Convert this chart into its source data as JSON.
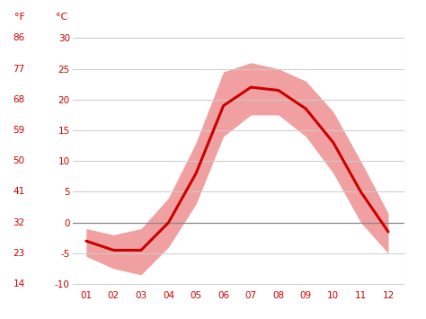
{
  "months": [
    1,
    2,
    3,
    4,
    5,
    6,
    7,
    8,
    9,
    10,
    11,
    12
  ],
  "month_labels": [
    "01",
    "02",
    "03",
    "04",
    "05",
    "06",
    "07",
    "08",
    "09",
    "10",
    "11",
    "12"
  ],
  "avg_temp": [
    -3,
    -4.5,
    -4.5,
    0,
    8,
    19,
    22,
    21.5,
    18.5,
    13,
    5,
    -1.5
  ],
  "max_temp": [
    -1,
    -2,
    -1,
    4,
    13,
    24.5,
    26,
    25,
    23,
    18,
    10,
    1.5
  ],
  "min_temp": [
    -5.5,
    -7.5,
    -8.5,
    -4,
    3,
    14,
    17.5,
    17.5,
    14,
    8,
    0,
    -5
  ],
  "line_color": "#cc0000",
  "band_color": "#f0a0a0",
  "zero_line_color": "#888888",
  "yticks_c": [
    -10,
    -5,
    0,
    5,
    10,
    15,
    20,
    25,
    30
  ],
  "yticks_f": [
    14,
    23,
    32,
    41,
    50,
    59,
    68,
    77,
    86
  ],
  "ymin": -10.5,
  "ymax": 31,
  "xmin": 0.5,
  "xmax": 12.6,
  "tick_color": "#cc0000",
  "bg_color": "#ffffff",
  "grid_color": "#cccccc",
  "label_f": "°F",
  "label_c": "°C"
}
